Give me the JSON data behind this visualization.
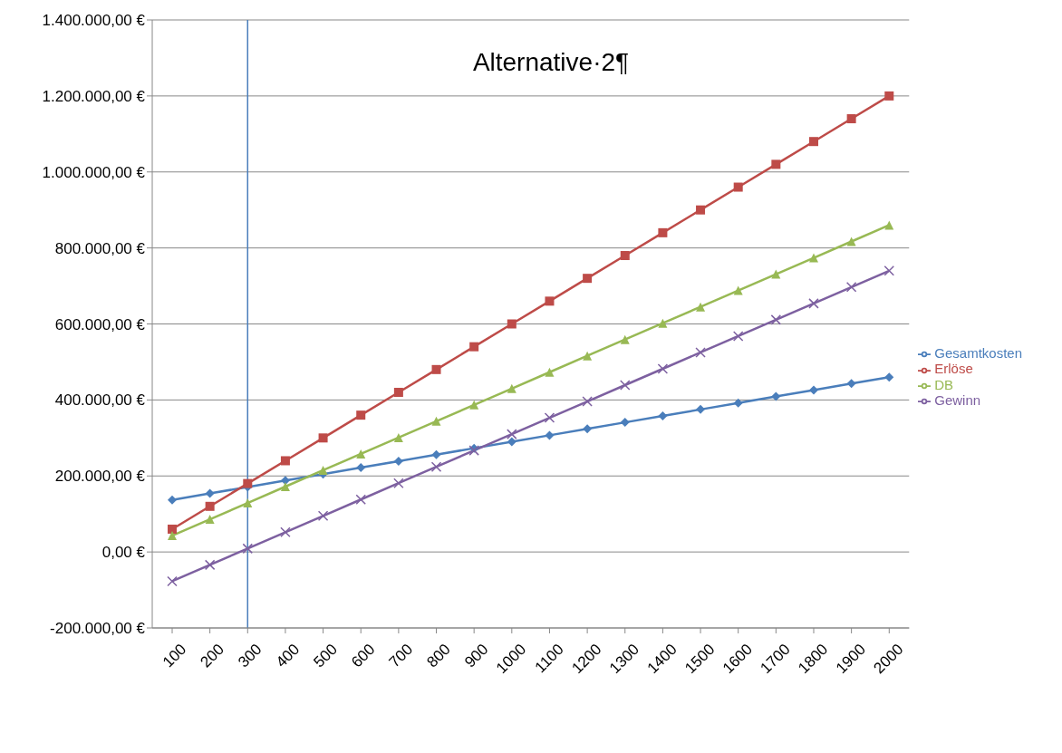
{
  "chart_data": {
    "type": "line",
    "title": "Alternative·2¶",
    "categories": [
      "100",
      "200",
      "300",
      "400",
      "500",
      "600",
      "700",
      "800",
      "900",
      "1000",
      "1100",
      "1200",
      "1300",
      "1400",
      "1500",
      "1600",
      "1700",
      "1800",
      "1900",
      "2000"
    ],
    "series": [
      {
        "name": "Gesamtkosten",
        "color": "#4a7ebb",
        "marker": "diamond",
        "values": [
          137000,
          154000,
          171000,
          188000,
          205000,
          222000,
          239000,
          256000,
          273000,
          290000,
          307000,
          324000,
          341000,
          358000,
          375000,
          392000,
          409000,
          426000,
          443000,
          460000
        ]
      },
      {
        "name": "Erlöse",
        "color": "#be4b48",
        "marker": "square",
        "values": [
          60000,
          120000,
          180000,
          240000,
          300000,
          360000,
          420000,
          480000,
          540000,
          600000,
          660000,
          720000,
          780000,
          840000,
          900000,
          960000,
          1020000,
          1080000,
          1140000,
          1200000
        ]
      },
      {
        "name": "DB",
        "color": "#98b954",
        "marker": "triangle",
        "values": [
          43000,
          86000,
          129000,
          172000,
          215000,
          258000,
          301000,
          344000,
          387000,
          430000,
          473000,
          516000,
          559000,
          602000,
          645000,
          688000,
          731000,
          774000,
          817000,
          860000
        ]
      },
      {
        "name": "Gewinn",
        "color": "#7d60a0",
        "marker": "cross",
        "values": [
          -77000,
          -34000,
          9000,
          52000,
          95000,
          138000,
          181000,
          224000,
          267000,
          310000,
          353000,
          396000,
          439000,
          482000,
          525000,
          568000,
          611000,
          654000,
          697000,
          740000
        ]
      }
    ],
    "ylim": [
      -200000,
      1400000
    ],
    "yticks": [
      {
        "value": -200000,
        "label": "-200.000,00 €"
      },
      {
        "value": 0,
        "label": "0,00 €"
      },
      {
        "value": 200000,
        "label": "200.000,00 €"
      },
      {
        "value": 400000,
        "label": "400.000,00 €"
      },
      {
        "value": 600000,
        "label": "600.000,00 €"
      },
      {
        "value": 800000,
        "label": "800.000,00 €"
      },
      {
        "value": 1000000,
        "label": "1.000.000,00 €"
      },
      {
        "value": 1200000,
        "label": "1.200.000,00 €"
      },
      {
        "value": 1400000,
        "label": "1.400.000,00 €"
      }
    ],
    "grid": "y",
    "legend": "right",
    "ref_lines": [
      {
        "axis": "x",
        "value": "300",
        "color": "#4a7ebb"
      }
    ]
  }
}
